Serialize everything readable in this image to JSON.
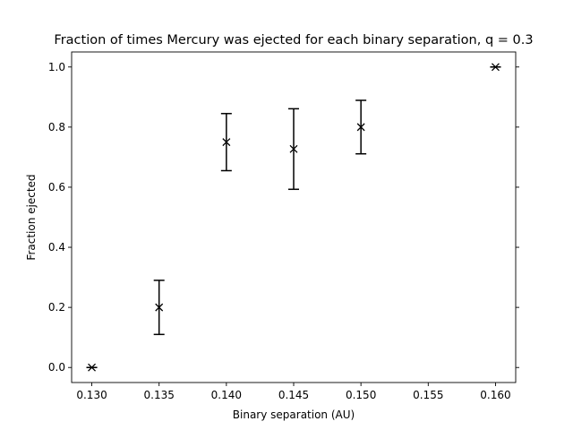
{
  "chart_data": {
    "type": "scatter",
    "title": "Fraction of times Mercury was ejected for each binary separation, q = 0.3",
    "xlabel": "Binary separation (AU)",
    "ylabel": "Fraction ejected",
    "xlim": [
      0.1285,
      0.1615
    ],
    "ylim": [
      -0.05,
      1.05
    ],
    "xticks": [
      "0.130",
      "0.135",
      "0.140",
      "0.145",
      "0.150",
      "0.155",
      "0.160"
    ],
    "yticks": [
      "0.0",
      "0.2",
      "0.4",
      "0.6",
      "0.8",
      "1.0"
    ],
    "marker": "x",
    "color": "#000000",
    "grid": false,
    "legend": false,
    "points": [
      {
        "x": 0.13,
        "y": 0.0,
        "yerr_low": 0.0,
        "yerr_high": 0.0
      },
      {
        "x": 0.135,
        "y": 0.2,
        "yerr_low": 0.09,
        "yerr_high": 0.09
      },
      {
        "x": 0.14,
        "y": 0.75,
        "yerr_low": 0.095,
        "yerr_high": 0.095
      },
      {
        "x": 0.145,
        "y": 0.727,
        "yerr_low": 0.134,
        "yerr_high": 0.134
      },
      {
        "x": 0.15,
        "y": 0.8,
        "yerr_low": 0.089,
        "yerr_high": 0.089
      },
      {
        "x": 0.16,
        "y": 1.0,
        "yerr_low": 0.0,
        "yerr_high": 0.0
      }
    ]
  }
}
